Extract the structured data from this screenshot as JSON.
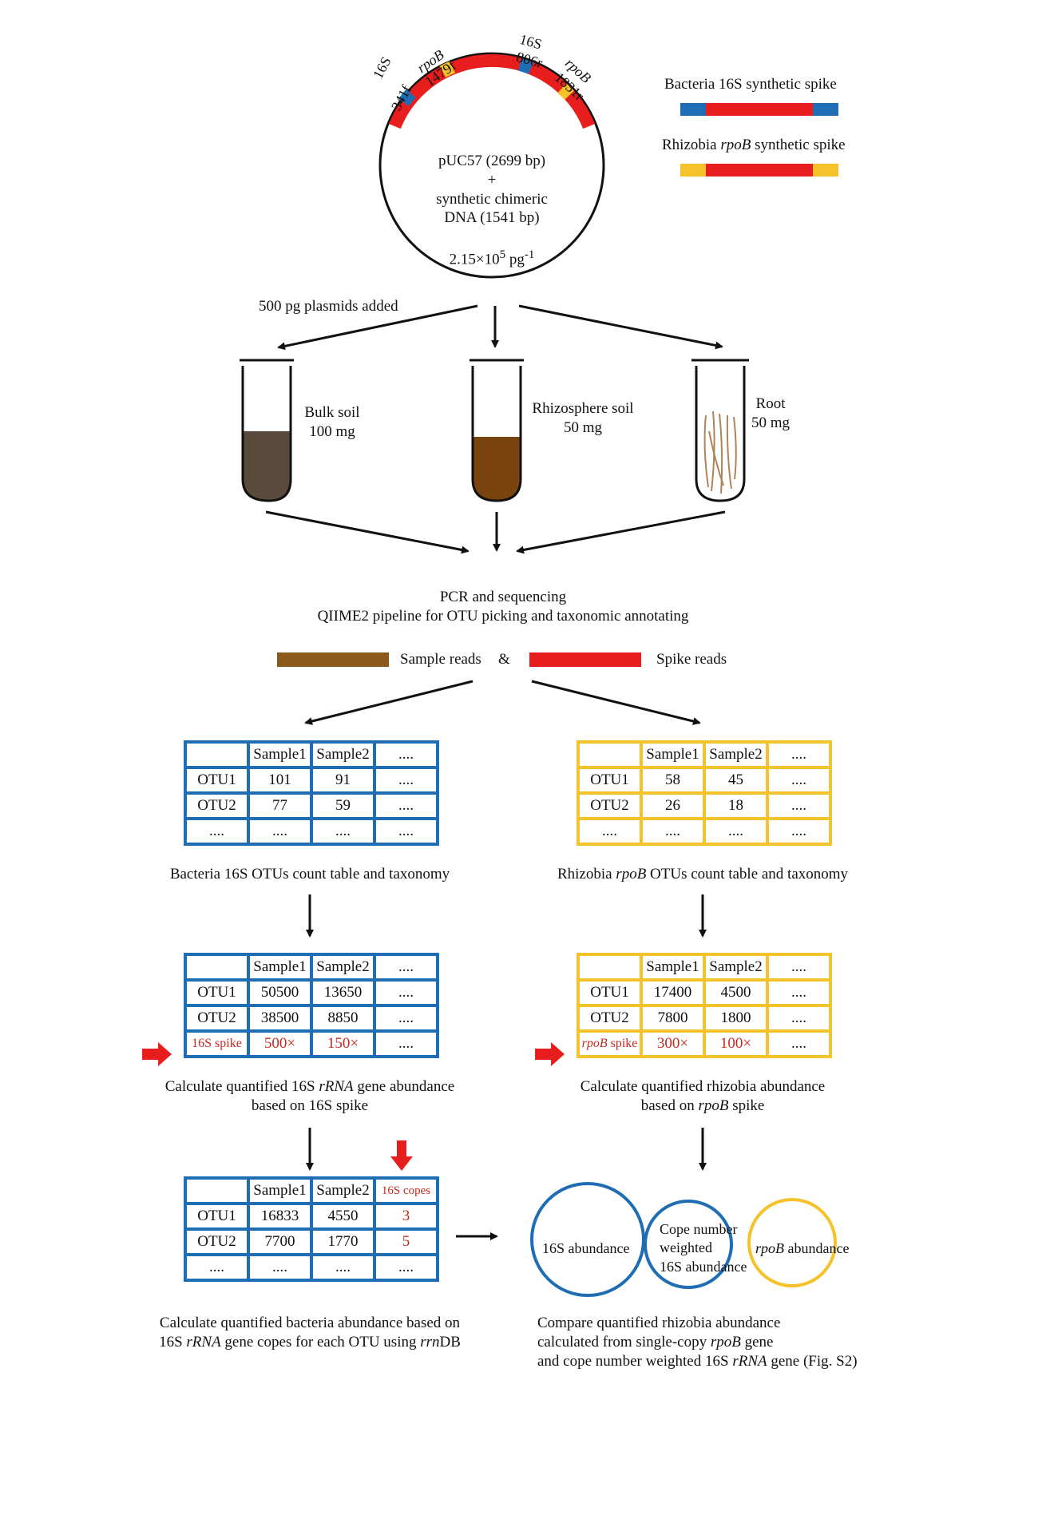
{
  "plasmid": {
    "line1": "pUC57 (2699 bp)",
    "line2": "+",
    "line3": "synthetic chimeric",
    "line4": "DNA (1541 bp)",
    "conc": "2.15×10",
    "conc_exp": "5",
    "conc_unit": " pg",
    "conc_unit_exp": "-1",
    "primers": {
      "p16s_341f_a": "16S",
      "p16s_341f_b": "341f",
      "rpob_1479f_a": "rpoB",
      "rpob_1479f_b": "1479f",
      "p16s_806r_a": "16S",
      "p16s_806r_b": "806r",
      "rpob_1831r_a": "rpoB",
      "rpob_1831r_b": "1831r"
    }
  },
  "legend": {
    "bacteria_spike": "Bacteria 16S synthetic spike",
    "rhizobia_prefix": "Rhizobia ",
    "rhizobia_gene": "rpoB",
    "rhizobia_suffix": " synthetic spike"
  },
  "plasmids_added": "500 pg plasmids added",
  "tubes": {
    "bulk_name": "Bulk soil",
    "bulk_mass": "100 mg",
    "rhizo_name": "Rhizosphere soil",
    "rhizo_mass": "50 mg",
    "root_name": "Root",
    "root_mass": "50 mg"
  },
  "pipeline": {
    "line1": "PCR and sequencing",
    "line2": "QIIME2 pipeline for OTU picking and taxonomic annotating"
  },
  "reads": {
    "sample": "Sample reads",
    "amp": "&",
    "spike": "Spike reads"
  },
  "tables": {
    "header": [
      "",
      "Sample1",
      "Sample2",
      "...."
    ],
    "bact_counts": {
      "rows": [
        [
          "OTU1",
          "101",
          "91",
          "...."
        ],
        [
          "OTU2",
          "77",
          "59",
          "...."
        ],
        [
          "....",
          "....",
          "....",
          "...."
        ]
      ],
      "caption": "Bacteria 16S OTUs count table and taxonomy"
    },
    "rhizo_counts": {
      "rows": [
        [
          "OTU1",
          "58",
          "45",
          "...."
        ],
        [
          "OTU2",
          "26",
          "18",
          "...."
        ],
        [
          "....",
          "....",
          "....",
          "...."
        ]
      ],
      "caption_prefix": "Rhizobia ",
      "caption_gene": "rpoB",
      "caption_suffix": " OTUs count table and taxonomy"
    },
    "bact_quant": {
      "rows": [
        [
          "OTU1",
          "50500",
          "13650",
          "...."
        ],
        [
          "OTU2",
          "38500",
          "8850",
          "...."
        ]
      ],
      "spike_row": [
        "16S spike",
        "500×",
        "150×",
        "...."
      ],
      "caption_l1_prefix": "Calculate quantified 16S ",
      "caption_l1_gene": "rRNA",
      "caption_l1_suffix": " gene abundance",
      "caption_l2": "based on 16S spike"
    },
    "rhizo_quant": {
      "rows": [
        [
          "OTU1",
          "17400",
          "4500",
          "...."
        ],
        [
          "OTU2",
          "7800",
          "1800",
          "...."
        ]
      ],
      "spike_row_gene": "rpoB",
      "spike_row_suffix": " spike",
      "spike_row": [
        "",
        "300×",
        "100×",
        "...."
      ],
      "caption_l1": "Calculate quantified rhizobia abundance",
      "caption_l2_prefix": "based on ",
      "caption_l2_gene": "rpoB",
      "caption_l2_suffix": " spike"
    },
    "bact_final": {
      "header": [
        "",
        "Sample1",
        "Sample2",
        "16S copes"
      ],
      "rows": [
        [
          "OTU1",
          "16833",
          "4550",
          "3"
        ],
        [
          "OTU2",
          "7700",
          "1770",
          "5"
        ],
        [
          "....",
          "....",
          "....",
          "...."
        ]
      ],
      "caption_l1": "Calculate quantified bacteria abundance based on",
      "caption_l2_a": "16S ",
      "caption_l2_gene": "rRNA",
      "caption_l2_b": " gene copes for each OTU using ",
      "caption_l2_db": "rrn",
      "caption_l2_c": "DB"
    }
  },
  "venn": {
    "left": "16S abundance",
    "middle_l1": "Cope number",
    "middle_l2": "weighted",
    "middle_l3": "16S abundance",
    "right_gene": "rpoB",
    "right_suffix": " abundance"
  },
  "compare": {
    "l1": "Compare quantified rhizobia abundance",
    "l2_a": "calculated from single-copy ",
    "l2_gene": "rpoB",
    "l2_b": " gene",
    "l3_a": "and cope number weighted 16S ",
    "l3_gene": "rRNA",
    "l3_b": " gene (Fig. S2)"
  },
  "colors": {
    "blue": "#1f6db5",
    "red": "#e81e1e",
    "gold": "#f5c22a",
    "brown": "#8b5a1b",
    "dark_soil": "#5a4a3c",
    "rhizo_soil": "#7a4410"
  },
  "icons": [
    "arrow-down-icon",
    "arrow-diagonal-icon",
    "red-pointer-arrow-icon",
    "test-tube-icon",
    "plasmid-circle-icon"
  ]
}
